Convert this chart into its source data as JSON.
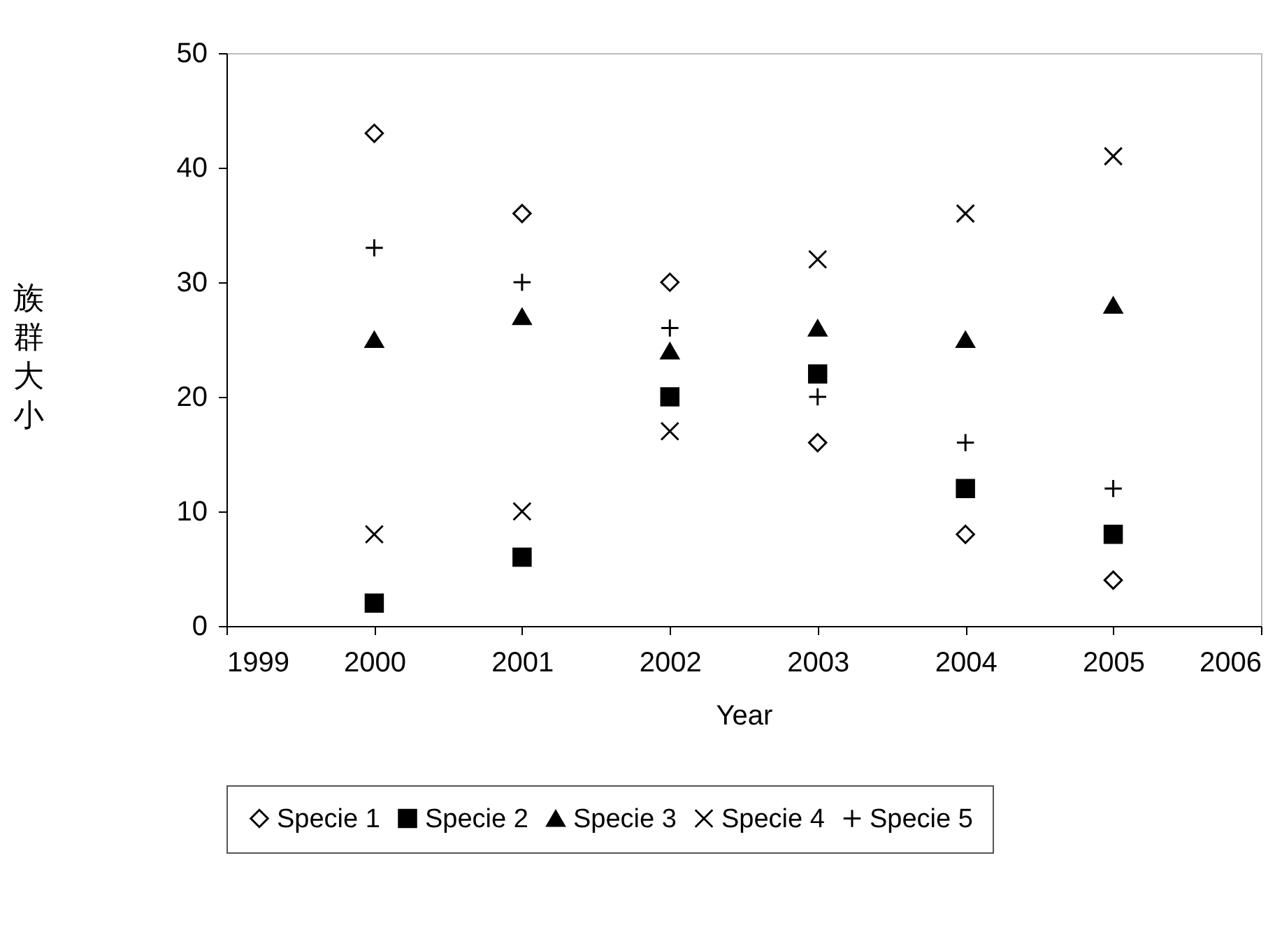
{
  "chart_data": {
    "type": "scatter",
    "xlabel": "Year",
    "ylabel": "族群大小",
    "x": [
      2000,
      2001,
      2002,
      2003,
      2004,
      2005
    ],
    "series": [
      {
        "name": "Specie 1",
        "color": "#000000",
        "marker": "diamond",
        "values": [
          43,
          36,
          30,
          16,
          8,
          4
        ]
      },
      {
        "name": "Specie 2",
        "color": "#000000",
        "marker": "square",
        "values": [
          2,
          6,
          20,
          22,
          12,
          8
        ]
      },
      {
        "name": "Specie 3",
        "color": "#000000",
        "marker": "triangle",
        "values": [
          25,
          27,
          24,
          26,
          25,
          28
        ]
      },
      {
        "name": "Specie 4",
        "color": "#000000",
        "marker": "cross",
        "values": [
          8,
          10,
          17,
          32,
          36,
          41
        ]
      },
      {
        "name": "Specie 5",
        "color": "#000000",
        "marker": "plus",
        "values": [
          33,
          30,
          26,
          20,
          16,
          12
        ]
      }
    ],
    "xlim": [
      1999,
      2006
    ],
    "xticks": [
      1999,
      2000,
      2001,
      2002,
      2003,
      2004,
      2005,
      2006
    ],
    "ylim": [
      0,
      50
    ],
    "yticks": [
      0,
      10,
      20,
      30,
      40,
      50
    ],
    "grid": false,
    "legend": "bottom"
  }
}
